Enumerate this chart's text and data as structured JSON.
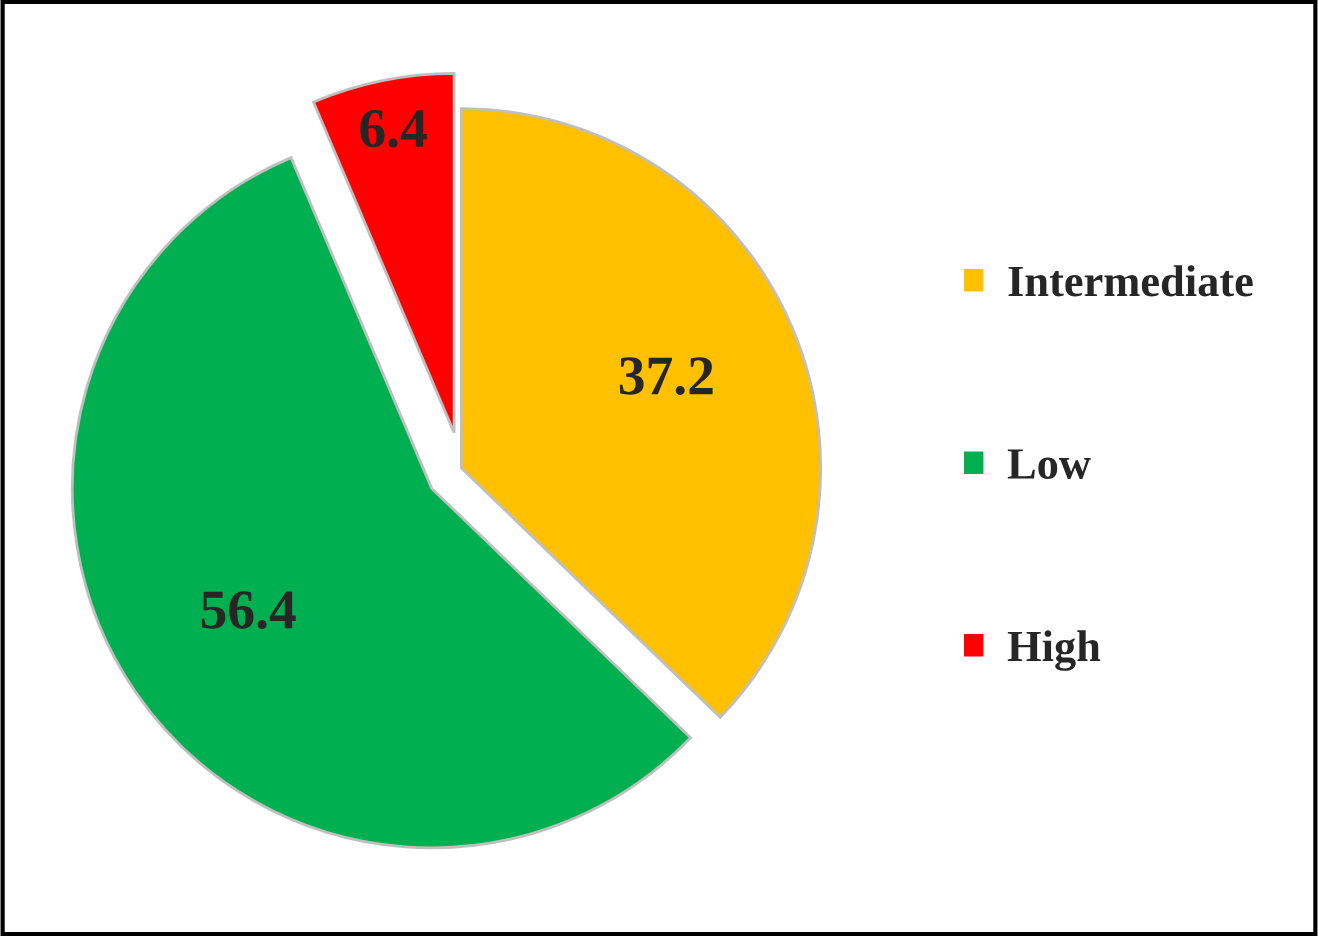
{
  "chart_data": {
    "type": "pie",
    "categories": [
      "Intermediate",
      "Low",
      "High"
    ],
    "values": [
      37.2,
      56.4,
      6.4
    ],
    "colors": [
      "#ffc000",
      "#00b050",
      "#ff0000"
    ],
    "data_labels": true,
    "legend": "right"
  }
}
